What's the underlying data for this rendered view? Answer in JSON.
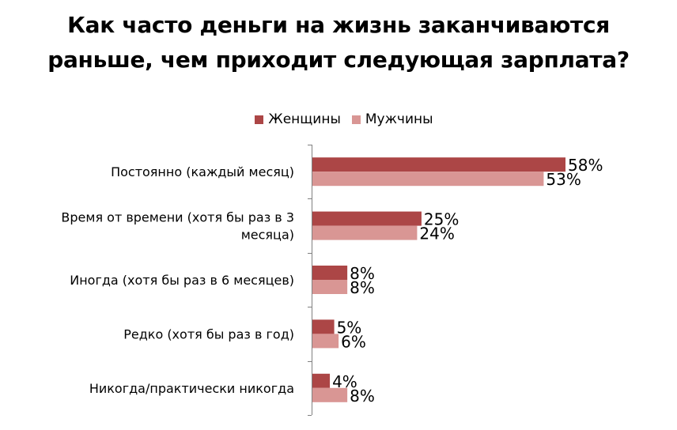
{
  "chart_data": {
    "type": "bar",
    "orientation": "horizontal",
    "title_lines": [
      "Как часто деньги на жизнь заканчиваются",
      "раньше, чем приходит следующая зарплата?"
    ],
    "categories": [
      [
        "Постоянно (каждый месяц)"
      ],
      [
        "Время от времени (хотя бы раз в 3",
        "месяца)"
      ],
      [
        "Иногда (хотя бы раз в 6 месяцев)"
      ],
      [
        "Редко (хотя бы раз в год)"
      ],
      [
        "Никогда/практически никогда"
      ]
    ],
    "series": [
      {
        "name": "Женщины",
        "color": "#ac4646",
        "values": [
          58,
          25,
          8,
          5,
          4
        ],
        "labels": [
          "58%",
          "25%",
          "8%",
          "5%",
          "4%"
        ]
      },
      {
        "name": "Мужчины",
        "color": "#d99694",
        "values": [
          53,
          24,
          8,
          6,
          8
        ],
        "labels": [
          "53%",
          "24%",
          "8%",
          "6%",
          "8%"
        ]
      }
    ],
    "xlim": [
      0,
      70
    ],
    "grid": false,
    "legend_position": "top"
  }
}
